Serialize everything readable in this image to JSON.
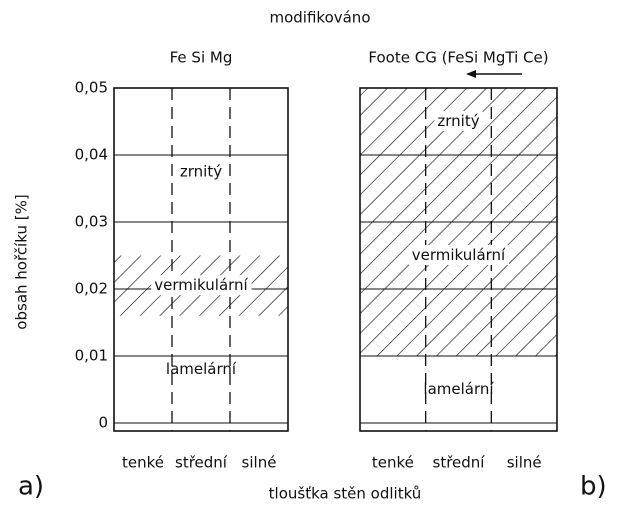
{
  "chart_data": {
    "type": "zones",
    "title": "modifikováno",
    "ylabel": "obsah hořčíku [%]",
    "xlabel": "tloušťka stěn odlitků",
    "ylim": [
      0,
      0.05
    ],
    "yticks": [
      0,
      {
        "value": 0.01,
        "label": "0,01"
      },
      {
        "value": 0.02,
        "label": "0,02"
      },
      {
        "value": 0.03,
        "label": "0,03"
      },
      {
        "value": 0.04,
        "label": "0,04"
      },
      {
        "value": 0.05,
        "label": "0,05"
      }
    ],
    "grid": true,
    "panels": [
      {
        "name": "Fe Si Mg",
        "letter": "a)",
        "categories": [
          "tenké",
          "střední",
          "silné"
        ],
        "zones": [
          {
            "label": "lamelární",
            "from": 0,
            "to": 0.016,
            "hatched": false
          },
          {
            "label": "vermikulární",
            "from": 0.016,
            "to": 0.025,
            "hatched": true
          },
          {
            "label": "zrnitý",
            "from": 0.025,
            "to": 0.05,
            "hatched": false
          }
        ]
      },
      {
        "name": "Foote CG (FeSi MgTi Ce)",
        "letter": "b)",
        "categories": [
          "tenké",
          "střední",
          "silné"
        ],
        "zones": [
          {
            "label": "lamelární",
            "from": 0,
            "to": 0.01,
            "hatched": false
          },
          {
            "label": "vermikulární",
            "from": 0.01,
            "to": 0.04,
            "hatched": true
          },
          {
            "label": "zrnitý",
            "from": 0.04,
            "to": 0.05,
            "hatched": true
          }
        ]
      }
    ]
  }
}
